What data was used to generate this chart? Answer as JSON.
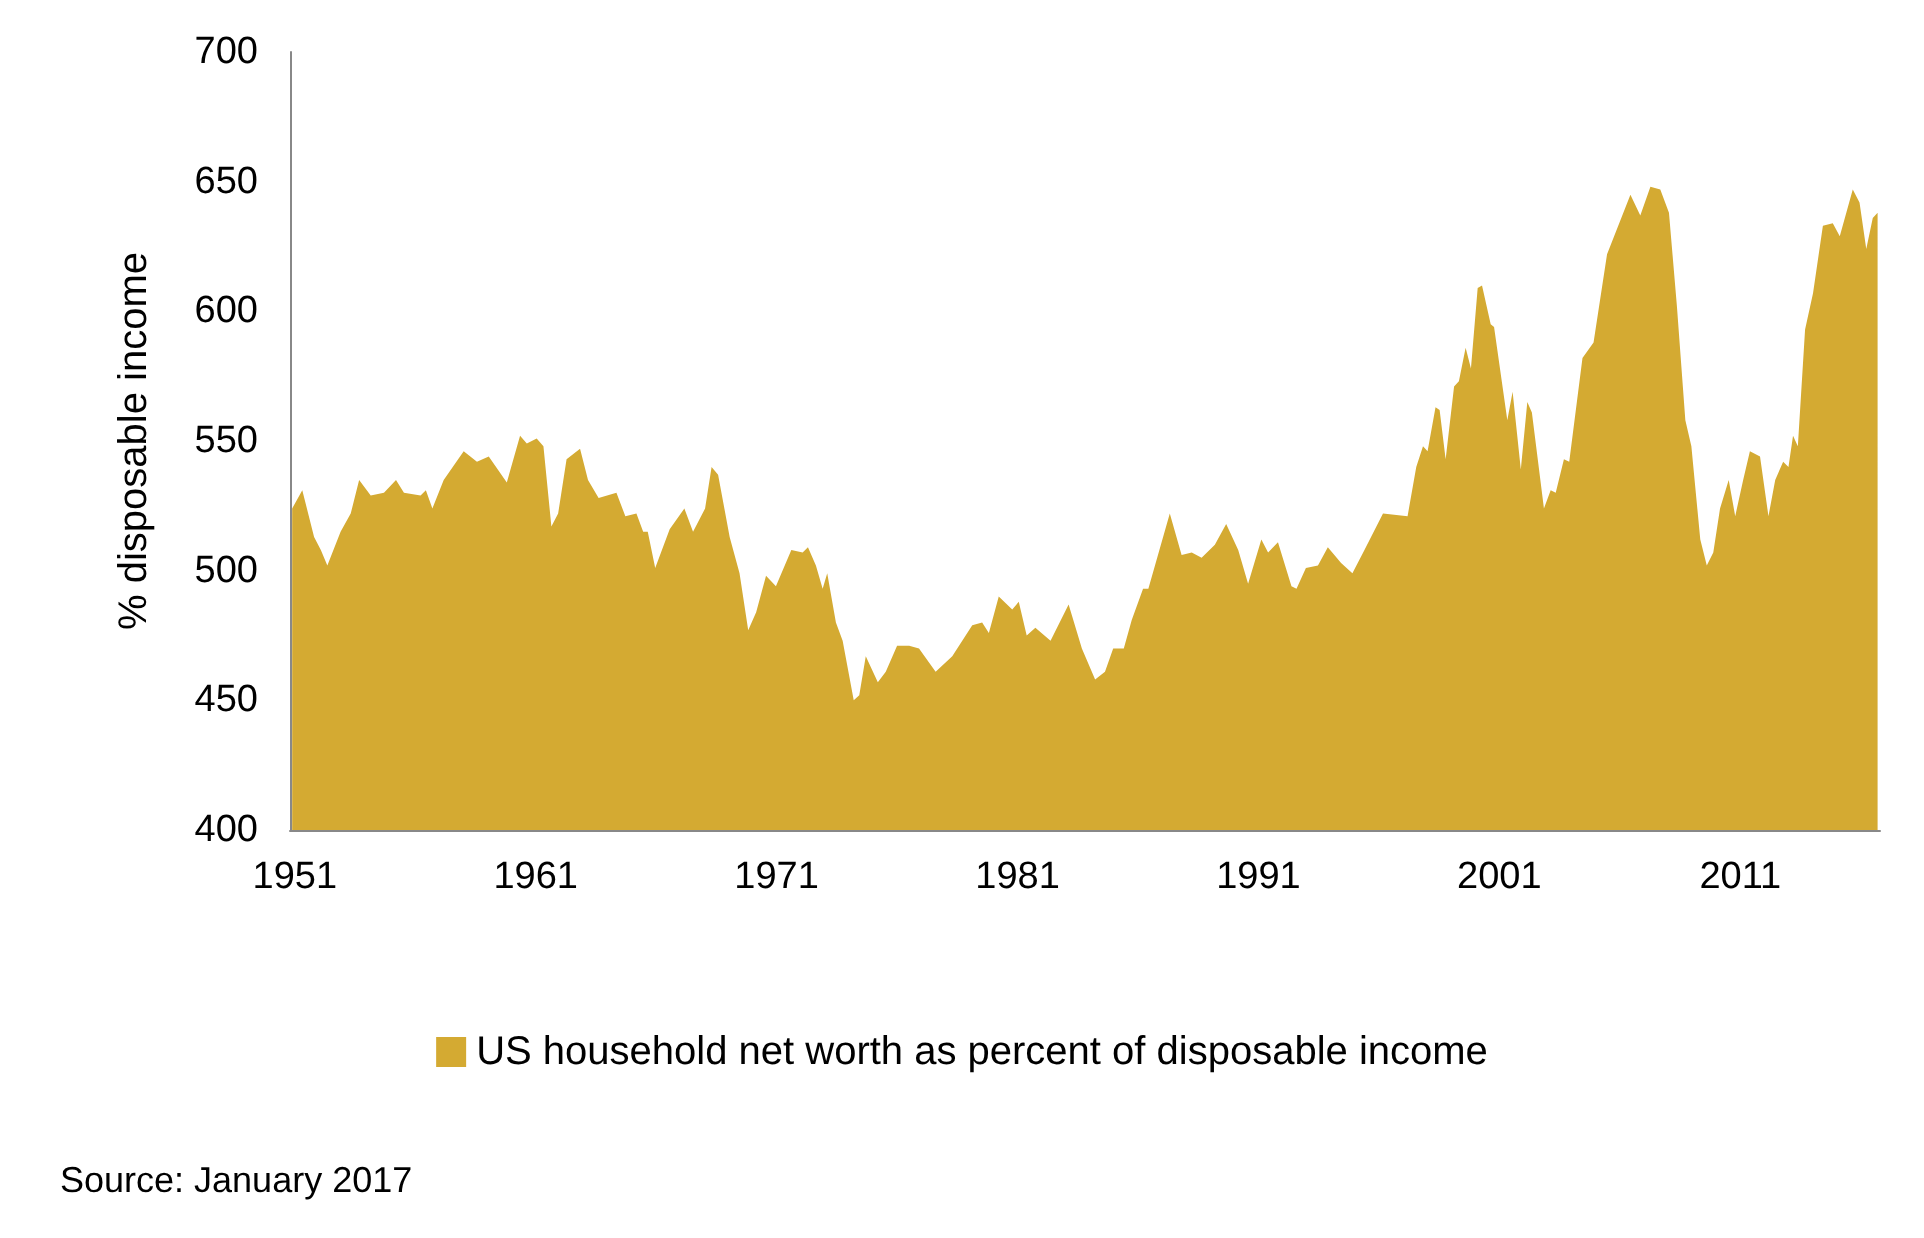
{
  "chart_data": {
    "type": "area",
    "ylabel": "% disposable income",
    "x": [
      1950.89,
      1951.31,
      1951.8,
      1952.08,
      1952.35,
      1952.9,
      1953.32,
      1953.67,
      1954.15,
      1954.7,
      1955.2,
      1955.53,
      1956.22,
      1956.44,
      1956.71,
      1957.18,
      1958.01,
      1958.56,
      1959.05,
      1959.8,
      1960.35,
      1960.63,
      1961.04,
      1961.32,
      1961.65,
      1961.93,
      1962.28,
      1962.84,
      1963.17,
      1963.61,
      1964.35,
      1964.72,
      1965.18,
      1965.46,
      1965.65,
      1965.96,
      1966.56,
      1967.17,
      1967.53,
      1968.03,
      1968.3,
      1968.57,
      1969.05,
      1969.46,
      1969.82,
      1970.15,
      1970.56,
      1970.97,
      1971.61,
      1972.08,
      1972.3,
      1972.63,
      1972.91,
      1973.1,
      1973.46,
      1973.74,
      1974.2,
      1974.43,
      1974.7,
      1975.2,
      1975.53,
      1976.0,
      1976.5,
      1976.91,
      1977.6,
      1978.29,
      1979.12,
      1979.53,
      1979.81,
      1980.22,
      1980.78,
      1981.05,
      1981.38,
      1981.74,
      1982.37,
      1983.12,
      1983.67,
      1984.22,
      1984.63,
      1984.97,
      1985.41,
      1985.74,
      1986.21,
      1986.43,
      1987.32,
      1987.81,
      1988.23,
      1988.64,
      1989.19,
      1989.66,
      1990.16,
      1990.57,
      1991.12,
      1991.4,
      1991.81,
      1992.37,
      1992.58,
      1992.97,
      1993.47,
      1993.88,
      1994.43,
      1994.9,
      1995.4,
      1996.17,
      1997.19,
      1997.55,
      1997.83,
      1998.02,
      1998.35,
      1998.52,
      1998.77,
      1999.12,
      1999.32,
      1999.6,
      1999.82,
      2000.1,
      2000.28,
      2000.64,
      2000.78,
      2001.33,
      2001.55,
      2001.89,
      2002.16,
      2002.35,
      2002.85,
      2003.13,
      2003.34,
      2003.68,
      2003.9,
      2004.45,
      2004.91,
      2005.47,
      2006.44,
      2006.85,
      2007.27,
      2007.68,
      2008.04,
      2008.37,
      2008.72,
      2008.97,
      2009.34,
      2009.61,
      2009.88,
      2010.16,
      2010.52,
      2010.79,
      2011.12,
      2011.4,
      2011.82,
      2012.17,
      2012.45,
      2012.78,
      2013.0,
      2013.19,
      2013.39,
      2013.69,
      2014.02,
      2014.43,
      2014.84,
      2015.13,
      2015.67,
      2015.95,
      2016.23,
      2016.5,
      2016.7
    ],
    "series": [
      {
        "name": "US household net worth as percent of disposable income",
        "color": "#d4aa32",
        "values": [
          524,
          531,
          513,
          508,
          502,
          515,
          522,
          535,
          529,
          530,
          535,
          530,
          529,
          531,
          524,
          535,
          546,
          542,
          544,
          534,
          552,
          549,
          551,
          548,
          517,
          522,
          543,
          547,
          535,
          528,
          530,
          521,
          522,
          515,
          515,
          501,
          516,
          524,
          515,
          524,
          540,
          537,
          513,
          499,
          477,
          484,
          498,
          494,
          508,
          507,
          509,
          502,
          493,
          499,
          480,
          473,
          450,
          452,
          467,
          457,
          461,
          471,
          471,
          470,
          461,
          467,
          479,
          480,
          476,
          490,
          485,
          488,
          475,
          478,
          473,
          487,
          470,
          458,
          461,
          470,
          470,
          481,
          493,
          493,
          522,
          506,
          507,
          505,
          510,
          518,
          508,
          495,
          512,
          507,
          511,
          494,
          493,
          501,
          502,
          509,
          503,
          499,
          508,
          522,
          521,
          540,
          548,
          546,
          563,
          562,
          543,
          571,
          573,
          586,
          578,
          609,
          610,
          595,
          594,
          558,
          569,
          539,
          565,
          561,
          524,
          531,
          530,
          543,
          542,
          582,
          588,
          622,
          645,
          637,
          648,
          647,
          638,
          602,
          558,
          548,
          512,
          502,
          507,
          524,
          535,
          521,
          535,
          546,
          544,
          521,
          535,
          542,
          540,
          552,
          548,
          593,
          607,
          633,
          634,
          629,
          647,
          642,
          624,
          636,
          638
        ]
      }
    ],
    "xlim": [
      1950.8,
      2016.8
    ],
    "xticks": [
      1951,
      1961,
      1971,
      1981,
      1991,
      2001,
      2011
    ],
    "ylim": [
      400,
      700
    ],
    "yticks": [
      400,
      450,
      500,
      550,
      600,
      650,
      700
    ],
    "grid": false,
    "legend": "bottom",
    "annotations": [
      "Source: January 2017"
    ]
  }
}
